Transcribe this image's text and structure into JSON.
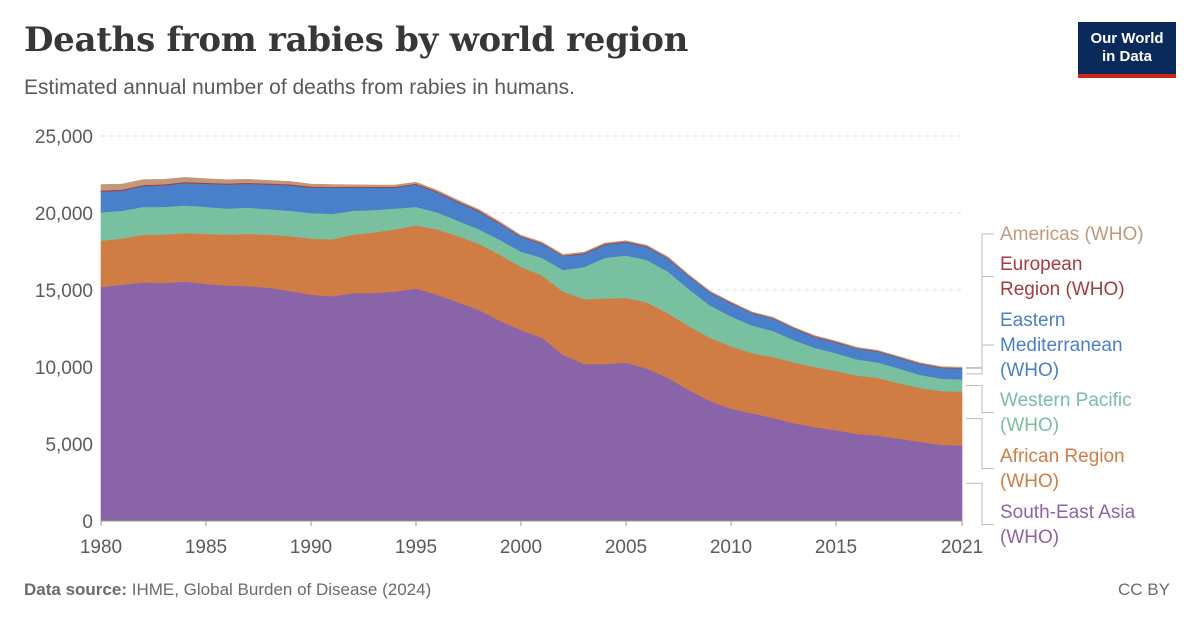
{
  "header": {
    "title": "Deaths from rabies by world region",
    "subtitle": "Estimated annual number of deaths from rabies in humans."
  },
  "logo": {
    "line1": "Our World",
    "line2": "in Data",
    "background": "#0a2a5c",
    "accent": "#ce261e"
  },
  "footer": {
    "source_label": "Data source:",
    "source_text": "IHME, Global Burden of Disease (2024)",
    "license": "CC BY"
  },
  "chart_data": {
    "type": "area",
    "stacked": true,
    "title": "Deaths from rabies by world region",
    "subtitle": "Estimated annual number of deaths from rabies in humans.",
    "ylim": [
      0,
      25000
    ],
    "yticks": [
      {
        "value": 0,
        "label": "0"
      },
      {
        "value": 5000,
        "label": "5,000"
      },
      {
        "value": 10000,
        "label": "10,000"
      },
      {
        "value": 15000,
        "label": "15,000"
      },
      {
        "value": 20000,
        "label": "20,000"
      },
      {
        "value": 25000,
        "label": "25,000"
      }
    ],
    "xlim": [
      1980,
      2021
    ],
    "xticks": [
      {
        "value": 1980,
        "label": "1980"
      },
      {
        "value": 1985,
        "label": "1985"
      },
      {
        "value": 1990,
        "label": "1990"
      },
      {
        "value": 1995,
        "label": "1995"
      },
      {
        "value": 2000,
        "label": "2000"
      },
      {
        "value": 2005,
        "label": "2005"
      },
      {
        "value": 2010,
        "label": "2010"
      },
      {
        "value": 2015,
        "label": "2015"
      },
      {
        "value": 2021,
        "label": "2021"
      }
    ],
    "grid": "horizontal-dashed",
    "legend_position": "right",
    "x": [
      1980,
      1981,
      1982,
      1983,
      1984,
      1985,
      1986,
      1987,
      1988,
      1989,
      1990,
      1991,
      1992,
      1993,
      1994,
      1995,
      1996,
      1997,
      1998,
      1999,
      2000,
      2001,
      2002,
      2003,
      2004,
      2005,
      2006,
      2007,
      2008,
      2009,
      2010,
      2011,
      2012,
      2013,
      2014,
      2015,
      2016,
      2017,
      2018,
      2019,
      2020,
      2021
    ],
    "series": [
      {
        "name": "South-East Asia (WHO)",
        "color": "#8a64a8",
        "values": [
          15200,
          15350,
          15500,
          15450,
          15550,
          15400,
          15300,
          15250,
          15150,
          14950,
          14700,
          14600,
          14800,
          14800,
          14900,
          15100,
          14700,
          14200,
          13700,
          13000,
          12400,
          11900,
          10800,
          10200,
          10200,
          10300,
          9900,
          9300,
          8500,
          7800,
          7300,
          7000,
          6700,
          6350,
          6100,
          5900,
          5650,
          5550,
          5350,
          5150,
          4950,
          4900
        ]
      },
      {
        "name": "African Region (WHO)",
        "color": "#d07d45",
        "values": [
          3000,
          3000,
          3100,
          3150,
          3150,
          3250,
          3300,
          3400,
          3450,
          3550,
          3650,
          3700,
          3800,
          3950,
          4050,
          4100,
          4250,
          4300,
          4300,
          4300,
          4100,
          4050,
          4100,
          4200,
          4250,
          4200,
          4300,
          4200,
          4150,
          4100,
          4050,
          3900,
          3950,
          3950,
          3900,
          3850,
          3800,
          3750,
          3600,
          3500,
          3500,
          3500
        ]
      },
      {
        "name": "Western Pacific (WHO)",
        "color": "#79c0a0",
        "values": [
          1850,
          1800,
          1800,
          1800,
          1800,
          1750,
          1700,
          1700,
          1650,
          1650,
          1650,
          1650,
          1550,
          1450,
          1350,
          1200,
          1100,
          1000,
          950,
          950,
          1000,
          1150,
          1400,
          2100,
          2650,
          2750,
          2750,
          2700,
          2400,
          2100,
          1950,
          1800,
          1700,
          1450,
          1250,
          1150,
          1050,
          1000,
          950,
          850,
          800,
          800
        ]
      },
      {
        "name": "Eastern Mediterranean (WHO)",
        "color": "#4a7fc9",
        "values": [
          1350,
          1300,
          1350,
          1400,
          1450,
          1500,
          1550,
          1550,
          1600,
          1650,
          1650,
          1700,
          1500,
          1450,
          1350,
          1450,
          1300,
          1200,
          1150,
          1050,
          950,
          900,
          900,
          850,
          850,
          850,
          850,
          850,
          850,
          850,
          850,
          800,
          800,
          750,
          700,
          700,
          700,
          700,
          700,
          700,
          700,
          700
        ]
      },
      {
        "name": "European Region (WHO)",
        "color": "#a63b3f",
        "values": [
          70,
          70,
          70,
          70,
          70,
          70,
          70,
          70,
          70,
          70,
          70,
          60,
          60,
          60,
          60,
          60,
          60,
          60,
          60,
          50,
          50,
          50,
          50,
          50,
          50,
          50,
          50,
          50,
          40,
          40,
          40,
          40,
          40,
          40,
          40,
          40,
          40,
          40,
          40,
          40,
          40,
          40
        ]
      },
      {
        "name": "Americas (WHO)",
        "color": "#c2987a",
        "values": [
          380,
          360,
          340,
          320,
          290,
          260,
          240,
          220,
          200,
          180,
          160,
          140,
          120,
          110,
          100,
          90,
          80,
          80,
          70,
          70,
          60,
          60,
          60,
          60,
          60,
          50,
          50,
          50,
          50,
          40,
          40,
          40,
          40,
          40,
          40,
          40,
          40,
          40,
          40,
          40,
          40,
          40
        ]
      }
    ]
  }
}
